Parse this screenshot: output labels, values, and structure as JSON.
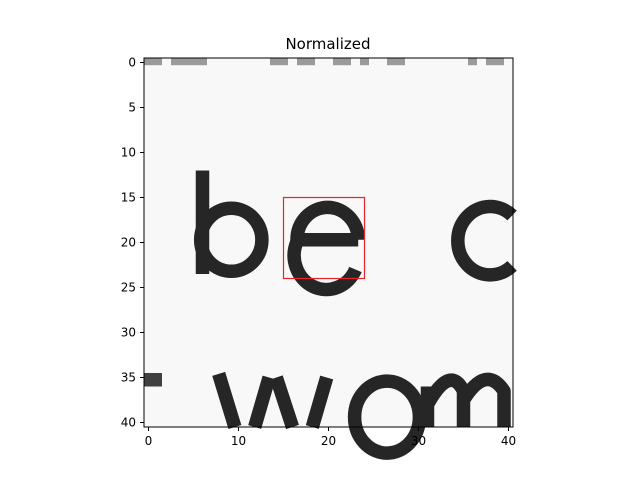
{
  "figure": {
    "title": "Normalized"
  },
  "chart_data": {
    "type": "heatmap",
    "title": "Normalized",
    "xlabel": "",
    "ylabel": "",
    "colormap": "gray",
    "xlim": [
      -0.5,
      40.5
    ],
    "ylim": [
      40.5,
      -0.5
    ],
    "xticks": [
      0,
      10,
      20,
      30,
      40
    ],
    "yticks": [
      0,
      5,
      10,
      15,
      20,
      25,
      30,
      35,
      40
    ],
    "image_text_content": [
      "be c",
      "wom"
    ],
    "annotations": [
      {
        "type": "rectangle",
        "color": "#e8262a",
        "x_range": [
          15,
          24
        ],
        "y_range": [
          15,
          24
        ]
      }
    ]
  }
}
